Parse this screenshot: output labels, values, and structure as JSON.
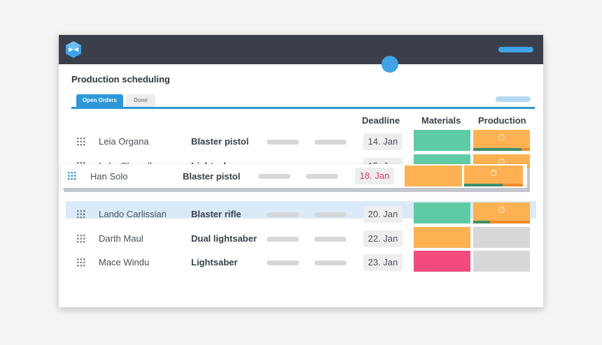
{
  "app": {
    "title": "Production scheduling"
  },
  "tabs": [
    {
      "label": "Open Orders",
      "active": true
    },
    {
      "label": "Done",
      "active": false
    }
  ],
  "columns": {
    "deadline": "Deadline",
    "materials": "Materials",
    "production": "Production"
  },
  "icons": {
    "logo": "bowtie-logo-icon",
    "timer": "stopwatch-icon",
    "grip": "drag-grip-icon"
  },
  "colors": {
    "accent": "#2d97d8",
    "green": "#5fcba4",
    "orange": "#fdb152",
    "pink": "#f34b7e",
    "gray": "#d8d8d8",
    "deadline_warning": "#d93a6a"
  },
  "rows": [
    {
      "name": "Leia Organa",
      "item": "Blaster pistol",
      "deadline": "14. Jan",
      "materials": "green",
      "production": "orange",
      "timer": "⏱",
      "progress": 0.85
    },
    {
      "name": "Luke Skywalker",
      "item": "Lightsaber",
      "deadline": "15. Jan",
      "materials": "green",
      "production": "orange",
      "timer": "⏱",
      "progress": 0.0
    },
    {
      "name": "Lando Carlissian",
      "item": "Blaster rifle",
      "deadline": "20. Jan",
      "materials": "green",
      "production": "orange",
      "timer": "⏱",
      "progress": 0.3
    },
    {
      "name": "Darth Maul",
      "item": "Dual lightsaber",
      "deadline": "22. Jan",
      "materials": "orange",
      "production": "gray"
    },
    {
      "name": "Mace Windu",
      "item": "Lightsaber",
      "deadline": "23. Jan",
      "materials": "pink",
      "production": "gray"
    }
  ],
  "dragging": {
    "name": "Han Solo",
    "item": "Blaster pistol",
    "deadline": "18. Jan",
    "materials": "orange",
    "production": "orange",
    "timer": "⏱",
    "progress": 0.65
  }
}
